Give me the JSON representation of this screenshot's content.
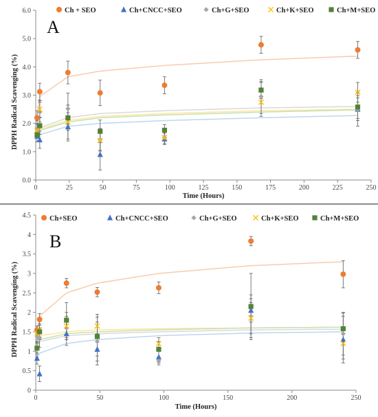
{
  "chart_data": [
    {
      "type": "scatter",
      "panel_label": "A",
      "xlabel": "Time (Hours)",
      "ylabel": "DPPH Radical Scavenging (%)",
      "xlim": [
        0,
        250
      ],
      "ylim": [
        0,
        6
      ],
      "xticks": [
        "0",
        "25",
        "50",
        "75",
        "100",
        "125",
        "150",
        "175",
        "200",
        "225",
        "250"
      ],
      "yticks": [
        "0.0",
        "1.0",
        "2.0",
        "3.0",
        "4.0",
        "5.0",
        "6.0"
      ],
      "grid": false,
      "legend_position": "top",
      "trend": "logarithmic",
      "x": [
        1,
        3,
        24,
        48,
        96,
        168,
        240
      ],
      "series": [
        {
          "name": "Ch + SEO",
          "marker": "circle",
          "color": "#ED7D31",
          "trend_color": "#F8CBAD",
          "values": [
            2.2,
            3.12,
            3.8,
            3.08,
            3.35,
            4.78,
            4.6
          ],
          "errors": [
            0.25,
            0.3,
            0.4,
            0.45,
            0.3,
            0.3,
            0.3
          ],
          "trend_values": [
            2.25,
            2.95,
            3.65,
            3.85,
            4.05,
            4.25,
            4.38
          ]
        },
        {
          "name": "Ch+CNCC+SEO",
          "marker": "triangle",
          "color": "#4472C4",
          "trend_color": "#BDD7EE",
          "values": [
            1.55,
            1.42,
            1.88,
            0.9,
            1.45,
            3.2,
            2.5
          ],
          "errors": [
            0.2,
            0.3,
            0.5,
            0.55,
            0.2,
            0.25,
            0.4
          ],
          "trend_values": [
            1.5,
            1.6,
            1.9,
            2.0,
            2.1,
            2.2,
            2.28
          ]
        },
        {
          "name": "Ch+G+SEO",
          "marker": "diamond",
          "color": "#A5A5A5",
          "trend_color": "#D9D9D9",
          "values": [
            1.8,
            2.4,
            2.52,
            1.42,
            1.5,
            2.95,
            2.5
          ],
          "errors": [
            0.3,
            0.35,
            0.55,
            0.4,
            0.25,
            0.6,
            0.6
          ],
          "trend_values": [
            1.7,
            1.85,
            2.2,
            2.35,
            2.45,
            2.55,
            2.6
          ]
        },
        {
          "name": "Ch+K+SEO",
          "marker": "x",
          "color": "#FFC000",
          "trend_color": "#FFE699",
          "values": [
            1.75,
            2.5,
            2.05,
            1.4,
            1.5,
            2.75,
            3.1
          ],
          "errors": [
            0.25,
            0.3,
            0.6,
            0.35,
            0.2,
            0.5,
            0.35
          ],
          "trend_values": [
            1.65,
            1.8,
            2.1,
            2.25,
            2.35,
            2.45,
            2.5
          ]
        },
        {
          "name": "Ch+M+SEO",
          "marker": "square",
          "color": "#548235",
          "trend_color": "#C5E0B4",
          "values": [
            1.6,
            1.92,
            2.2,
            1.72,
            1.76,
            3.18,
            2.58
          ],
          "errors": [
            0.25,
            0.3,
            0.45,
            0.4,
            0.2,
            0.3,
            0.4
          ],
          "trend_values": [
            1.6,
            1.75,
            2.05,
            2.2,
            2.3,
            2.4,
            2.48
          ]
        }
      ]
    },
    {
      "type": "scatter",
      "panel_label": "B",
      "xlabel": "Time (Hours)",
      "ylabel": "DPPH Radical Scavenging (%)",
      "xlim": [
        0,
        250
      ],
      "ylim": [
        0,
        4.5
      ],
      "xticks": [
        "0",
        "50",
        "100",
        "150",
        "200",
        "250"
      ],
      "yticks": [
        "0",
        "0.5",
        "1",
        "1.5",
        "2",
        "2.5",
        "3",
        "3.5",
        "4",
        "4.5"
      ],
      "grid": false,
      "legend_position": "top",
      "trend": "logarithmic",
      "x": [
        1,
        3,
        24,
        48,
        96,
        168,
        240
      ],
      "series": [
        {
          "name": "Ch+SEO",
          "marker": "circle",
          "color": "#ED7D31",
          "trend_color": "#F8CBAD",
          "values": [
            1.55,
            1.82,
            2.75,
            2.52,
            2.63,
            3.83,
            2.98
          ],
          "errors": [
            0.1,
            0.15,
            0.12,
            0.12,
            0.15,
            0.12,
            0.35
          ],
          "trend_values": [
            1.5,
            1.9,
            2.5,
            2.75,
            3.0,
            3.2,
            3.3
          ]
        },
        {
          "name": "Ch+CNCC+SEO",
          "marker": "triangle",
          "color": "#4472C4",
          "trend_color": "#BDD7EE",
          "values": [
            0.82,
            0.42,
            1.45,
            1.05,
            0.85,
            2.05,
            1.3
          ],
          "errors": [
            0.15,
            0.2,
            0.3,
            0.4,
            0.15,
            0.3,
            0.6
          ],
          "trend_values": [
            0.8,
            0.95,
            1.2,
            1.3,
            1.4,
            1.47,
            1.5
          ]
        },
        {
          "name": "Ch+G+SEO",
          "marker": "diamond",
          "color": "#A5A5A5",
          "trend_color": "#D9D9D9",
          "values": [
            1.4,
            1.35,
            1.6,
            1.25,
            0.75,
            1.9,
            1.45
          ],
          "errors": [
            0.2,
            0.25,
            0.3,
            0.5,
            0.1,
            0.55,
            0.55
          ],
          "trend_values": [
            1.1,
            1.25,
            1.4,
            1.45,
            1.5,
            1.55,
            1.57
          ]
        },
        {
          "name": "Ch+K+SEO",
          "marker": "x",
          "color": "#FFC000",
          "trend_color": "#FFE699",
          "values": [
            1.45,
            1.55,
            1.65,
            1.65,
            1.2,
            1.85,
            1.2
          ],
          "errors": [
            0.2,
            0.25,
            0.35,
            0.3,
            0.15,
            0.4,
            0.4
          ],
          "trend_values": [
            1.3,
            1.4,
            1.5,
            1.55,
            1.58,
            1.6,
            1.62
          ]
        },
        {
          "name": "Ch+M+SEO",
          "marker": "square",
          "color": "#548235",
          "trend_color": "#C5E0B4",
          "values": [
            1.08,
            1.5,
            1.8,
            1.38,
            1.05,
            2.15,
            1.58
          ],
          "errors": [
            0.15,
            0.2,
            0.45,
            0.5,
            0.2,
            0.85,
            0.4
          ],
          "trend_values": [
            1.1,
            1.3,
            1.45,
            1.5,
            1.55,
            1.6,
            1.62
          ]
        }
      ]
    }
  ]
}
